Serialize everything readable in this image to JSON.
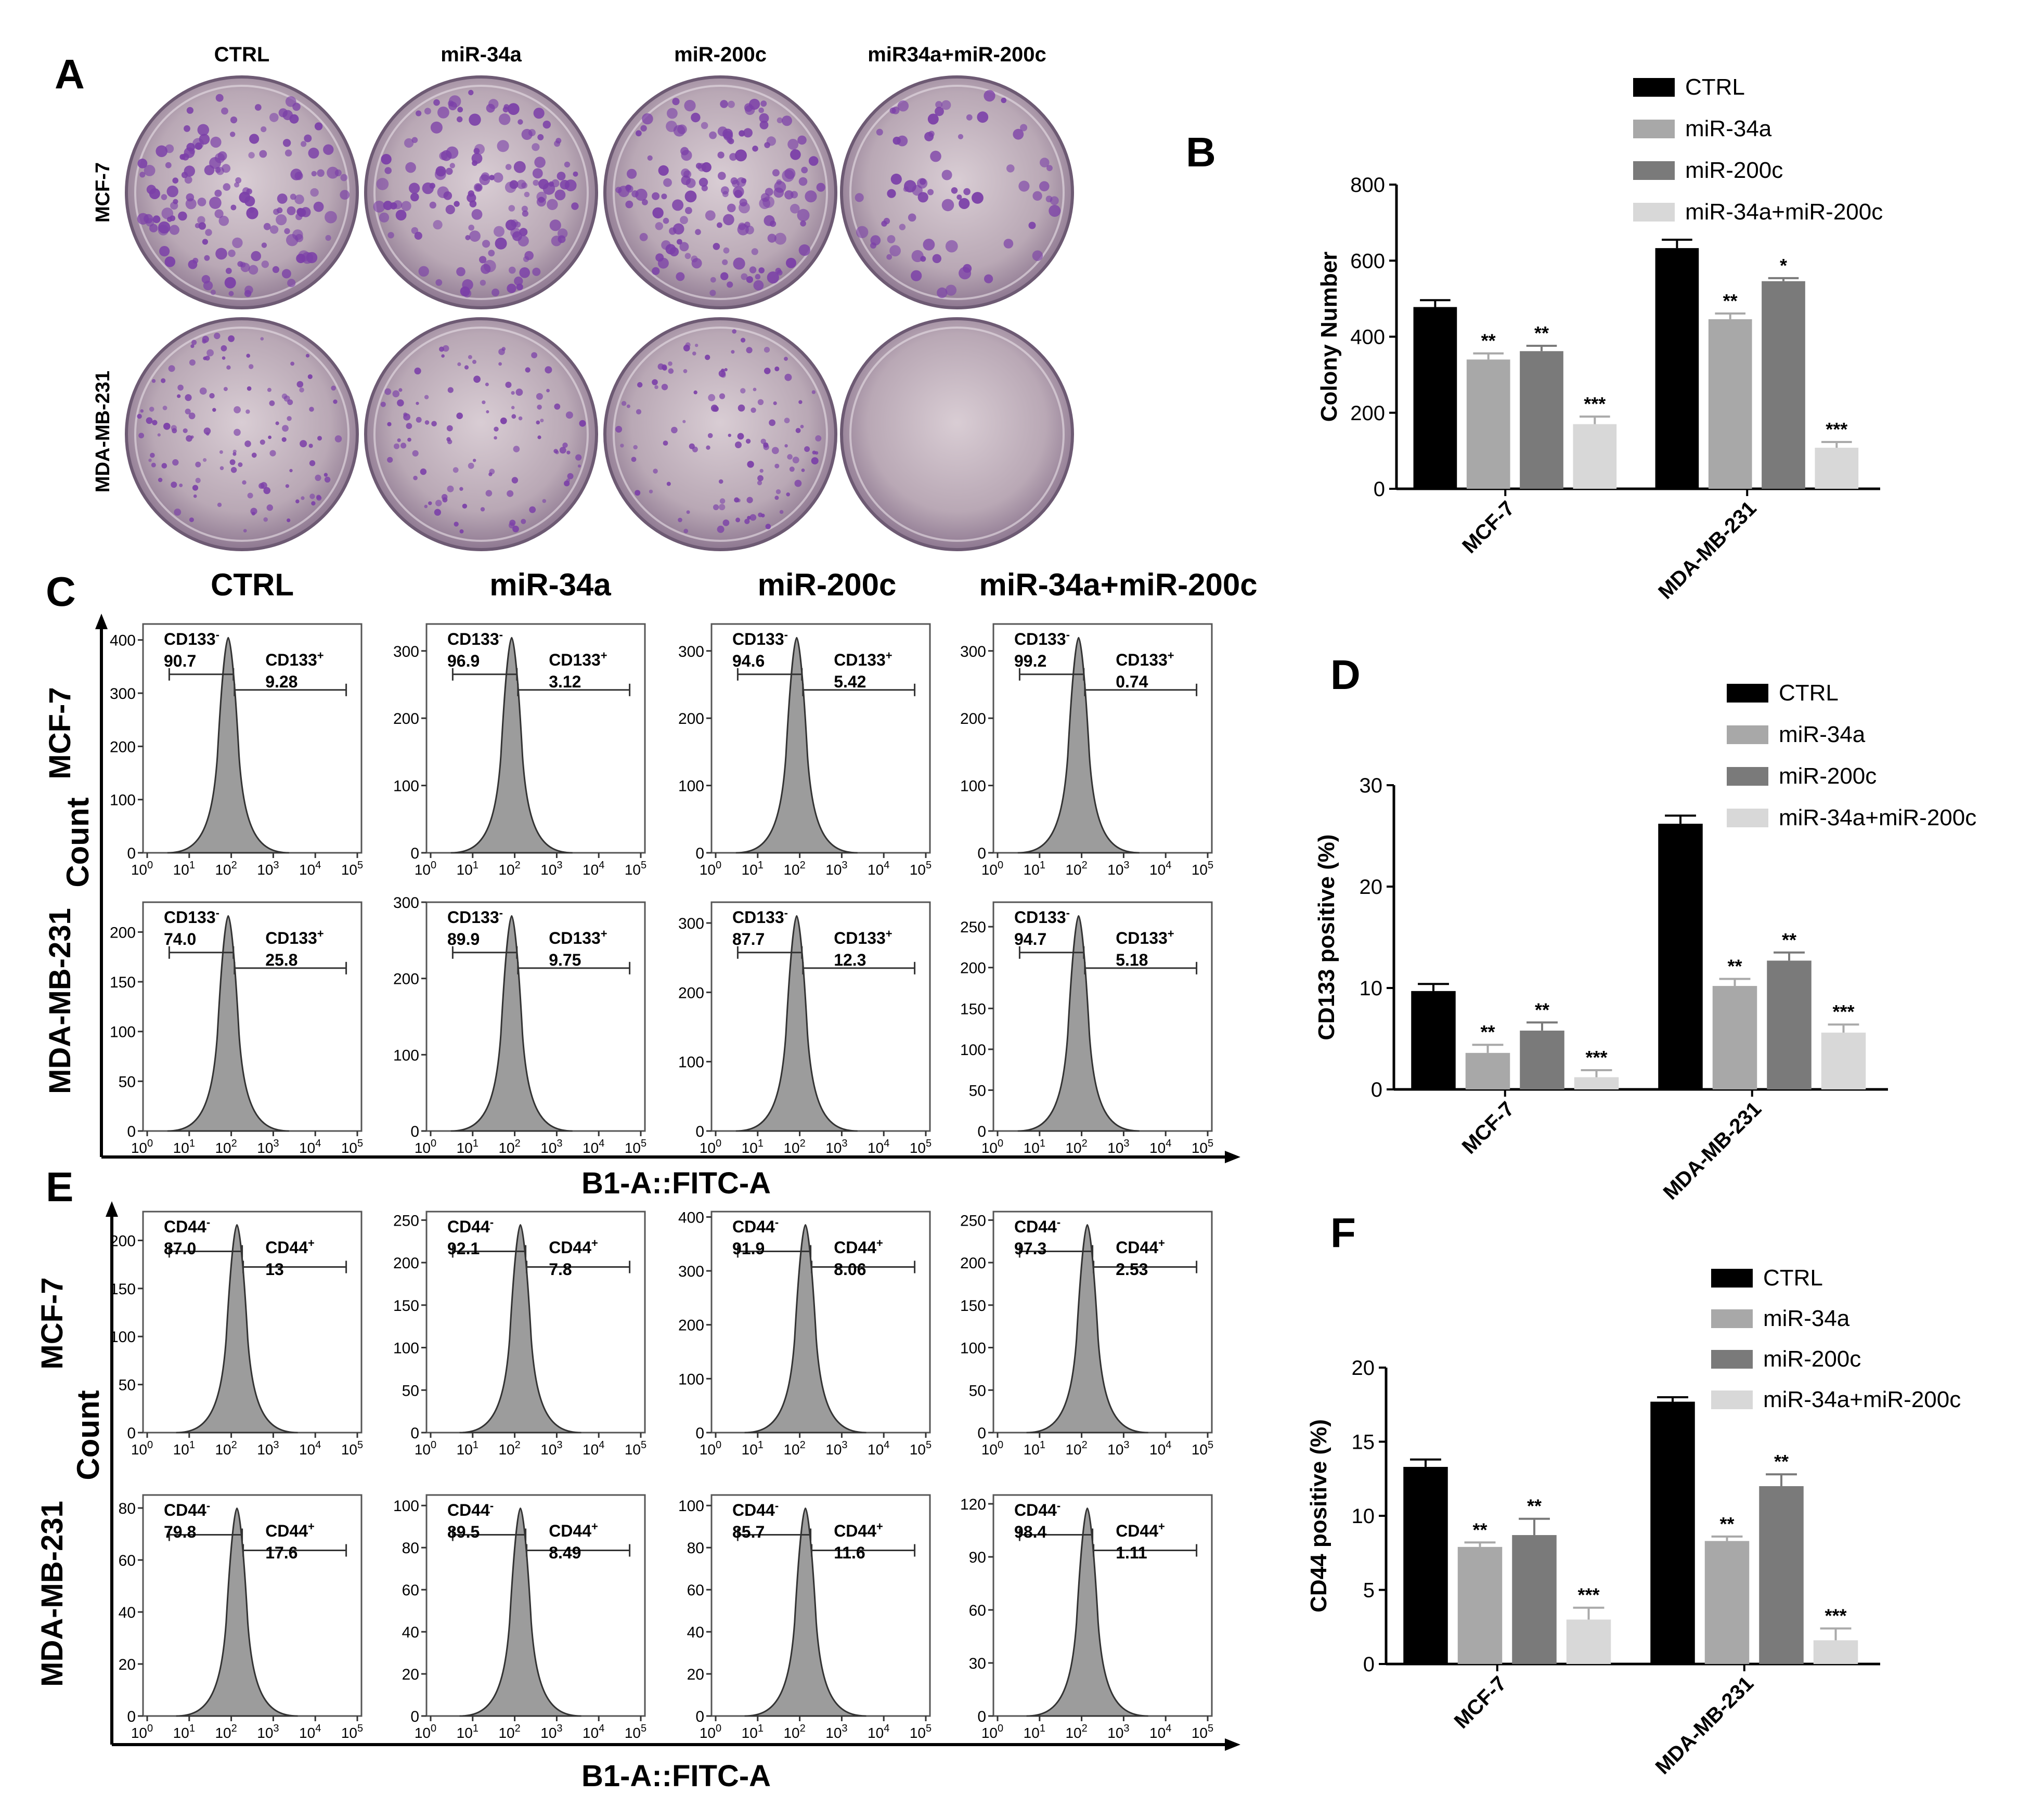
{
  "panels": {
    "A": "A",
    "B": "B",
    "C": "C",
    "D": "D",
    "E": "E",
    "F": "F"
  },
  "panel_a": {
    "columns": [
      "CTRL",
      "miR-34a",
      "miR-200c",
      "miR34a+miR-200c"
    ],
    "rows": [
      "MCF-7",
      "MDA-MB-231"
    ],
    "plate_color": "#7b3fa8"
  },
  "facs_c": {
    "columns": [
      "CTRL",
      "miR-34a",
      "miR-200c",
      "miR-34a+miR-200c"
    ],
    "rows": [
      "MCF-7",
      "MDA-MB-231"
    ],
    "count_label": "Count",
    "xlabel": "B1-A::FITC-A",
    "neg_label": "CD133",
    "pos_label": "CD133",
    "neg_sup": "-",
    "pos_sup": "+",
    "x_ticks": [
      "10",
      "10",
      "10",
      "10",
      "10",
      "10"
    ],
    "x_exps": [
      "0",
      "1",
      "2",
      "3",
      "4",
      "5"
    ],
    "plots": [
      {
        "neg": "90.7",
        "pos": "9.28",
        "yticks": [
          "0",
          "100",
          "200",
          "300",
          "400"
        ],
        "ymax": 430
      },
      {
        "neg": "96.9",
        "pos": "3.12",
        "yticks": [
          "0",
          "100",
          "200",
          "300"
        ],
        "ymax": 340
      },
      {
        "neg": "94.6",
        "pos": "5.42",
        "yticks": [
          "0",
          "100",
          "200",
          "300"
        ],
        "ymax": 340
      },
      {
        "neg": "99.2",
        "pos": "0.74",
        "yticks": [
          "0",
          "100",
          "200",
          "300"
        ],
        "ymax": 340
      },
      {
        "neg": "74.0",
        "pos": "25.8",
        "yticks": [
          "0",
          "50",
          "100",
          "150",
          "200"
        ],
        "ymax": 230
      },
      {
        "neg": "89.9",
        "pos": "9.75",
        "yticks": [
          "0",
          "100",
          "200",
          "300"
        ],
        "ymax": 300
      },
      {
        "neg": "87.7",
        "pos": "12.3",
        "yticks": [
          "0",
          "100",
          "200",
          "300"
        ],
        "ymax": 330
      },
      {
        "neg": "94.7",
        "pos": "5.18",
        "yticks": [
          "0",
          "50",
          "100",
          "150",
          "200",
          "250"
        ],
        "ymax": 280
      }
    ]
  },
  "facs_e": {
    "rows": [
      "MCF-7",
      "MDA-MB-231"
    ],
    "count_label": "Count",
    "xlabel": "B1-A::FITC-A",
    "neg_label": "CD44",
    "pos_label": "CD44",
    "neg_sup": "-",
    "pos_sup": "+",
    "x_ticks": [
      "10",
      "10",
      "10",
      "10",
      "10",
      "10"
    ],
    "x_exps": [
      "0",
      "1",
      "2",
      "3",
      "4",
      "5"
    ],
    "plots": [
      {
        "neg": "87.0",
        "pos": "13",
        "yticks": [
          "0",
          "50",
          "100",
          "150",
          "200"
        ],
        "ymax": 230
      },
      {
        "neg": "92.1",
        "pos": "7.8",
        "yticks": [
          "0",
          "50",
          "100",
          "150",
          "200",
          "250"
        ],
        "ymax": 260
      },
      {
        "neg": "91.9",
        "pos": "8.06",
        "yticks": [
          "0",
          "100",
          "200",
          "300",
          "400"
        ],
        "ymax": 410
      },
      {
        "neg": "97.3",
        "pos": "2.53",
        "yticks": [
          "0",
          "50",
          "100",
          "150",
          "200",
          "250"
        ],
        "ymax": 260
      },
      {
        "neg": "79.8",
        "pos": "17.6",
        "yticks": [
          "0",
          "20",
          "40",
          "60",
          "80"
        ],
        "ymax": 85
      },
      {
        "neg": "89.5",
        "pos": "8.49",
        "yticks": [
          "0",
          "20",
          "40",
          "60",
          "80",
          "100"
        ],
        "ymax": 105
      },
      {
        "neg": "85.7",
        "pos": "11.6",
        "yticks": [
          "0",
          "20",
          "40",
          "60",
          "80",
          "100"
        ],
        "ymax": 105
      },
      {
        "neg": "98.4",
        "pos": "1.11",
        "yticks": [
          "0",
          "30",
          "60",
          "90",
          "120"
        ],
        "ymax": 125
      }
    ]
  },
  "chart_data": [
    {
      "type": "bar",
      "panel": "B",
      "ylabel": "Colony Number",
      "categories": [
        "MCF-7",
        "MDA-MB-231"
      ],
      "ylim": [
        0,
        800
      ],
      "yticks": [
        "0",
        "200",
        "400",
        "600",
        "800"
      ],
      "series": [
        {
          "name": "CTRL",
          "values": [
            478,
            633
          ],
          "err": [
            18,
            22
          ],
          "color": "#000000"
        },
        {
          "name": "miR-34a",
          "values": [
            340,
            446
          ],
          "err": [
            16,
            15
          ],
          "color": "#a8a8a8"
        },
        {
          "name": "miR-200c",
          "values": [
            362,
            546
          ],
          "err": [
            14,
            8
          ],
          "color": "#7a7a7a"
        },
        {
          "name": "miR-34a+miR-200c",
          "values": [
            170,
            108
          ],
          "err": [
            20,
            15
          ],
          "color": "#d8d8d8"
        }
      ],
      "significance": [
        [
          "",
          "**",
          "**",
          "***"
        ],
        [
          "",
          "**",
          "*",
          "***"
        ]
      ]
    },
    {
      "type": "bar",
      "panel": "D",
      "ylabel": "CD133 positive (%)",
      "categories": [
        "MCF-7",
        "MDA-MB-231"
      ],
      "ylim": [
        0,
        30
      ],
      "yticks": [
        "0",
        "10",
        "20",
        "30"
      ],
      "series": [
        {
          "name": "CTRL",
          "values": [
            9.7,
            26.2
          ],
          "err": [
            0.7,
            0.8
          ],
          "color": "#000000"
        },
        {
          "name": "miR-34a",
          "values": [
            3.6,
            10.2
          ],
          "err": [
            0.8,
            0.7
          ],
          "color": "#a8a8a8"
        },
        {
          "name": "miR-200c",
          "values": [
            5.8,
            12.7
          ],
          "err": [
            0.8,
            0.8
          ],
          "color": "#7a7a7a"
        },
        {
          "name": "miR-34a+miR-200c",
          "values": [
            1.2,
            5.6
          ],
          "err": [
            0.7,
            0.8
          ],
          "color": "#d8d8d8"
        }
      ],
      "significance": [
        [
          "",
          "**",
          "**",
          "***"
        ],
        [
          "",
          "**",
          "**",
          "***"
        ]
      ]
    },
    {
      "type": "bar",
      "panel": "F",
      "ylabel": "CD44 positive (%)",
      "categories": [
        "MCF-7",
        "MDA-MB-231"
      ],
      "ylim": [
        0,
        20
      ],
      "yticks": [
        "0",
        "5",
        "10",
        "15",
        "20"
      ],
      "series": [
        {
          "name": "CTRL",
          "values": [
            13.3,
            17.7
          ],
          "err": [
            0.5,
            0.3
          ],
          "color": "#000000"
        },
        {
          "name": "miR-34a",
          "values": [
            7.9,
            8.3
          ],
          "err": [
            0.3,
            0.3
          ],
          "color": "#a8a8a8"
        },
        {
          "name": "miR-200c",
          "values": [
            8.7,
            12.0
          ],
          "err": [
            1.1,
            0.8
          ],
          "color": "#7a7a7a"
        },
        {
          "name": "miR-34a+miR-200c",
          "values": [
            3.0,
            1.6
          ],
          "err": [
            0.8,
            0.8
          ],
          "color": "#d8d8d8"
        }
      ],
      "significance": [
        [
          "",
          "**",
          "**",
          "***"
        ],
        [
          "",
          "**",
          "**",
          "***"
        ]
      ]
    }
  ]
}
